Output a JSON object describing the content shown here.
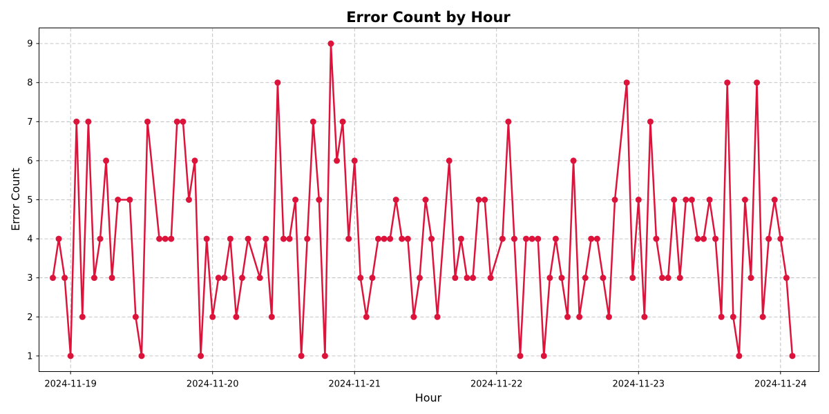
{
  "chart_data": {
    "type": "line",
    "title": "Error Count by Hour",
    "xlabel": "Hour",
    "ylabel": "Error Count",
    "xlim": [
      "2024-11-18 18:40",
      "2024-11-24 06:30"
    ],
    "ylim": [
      0.6,
      9.4
    ],
    "grid": true,
    "x_ticks": [
      {
        "value": "2024-11-19 00:00",
        "label": "2024-11-19"
      },
      {
        "value": "2024-11-20 00:00",
        "label": "2024-11-20"
      },
      {
        "value": "2024-11-21 00:00",
        "label": "2024-11-21"
      },
      {
        "value": "2024-11-22 00:00",
        "label": "2024-11-22"
      },
      {
        "value": "2024-11-23 00:00",
        "label": "2024-11-23"
      },
      {
        "value": "2024-11-24 00:00",
        "label": "2024-11-24"
      }
    ],
    "y_ticks": [
      1,
      2,
      3,
      4,
      5,
      6,
      7,
      8,
      9
    ],
    "series": [
      {
        "color": "#dc143c",
        "points": [
          [
            "2024-11-18 21:00",
            3
          ],
          [
            "2024-11-18 22:00",
            4
          ],
          [
            "2024-11-18 23:00",
            3
          ],
          [
            "2024-11-19 00:00",
            1
          ],
          [
            "2024-11-19 01:00",
            7
          ],
          [
            "2024-11-19 02:00",
            2
          ],
          [
            "2024-11-19 03:00",
            7
          ],
          [
            "2024-11-19 04:00",
            3
          ],
          [
            "2024-11-19 05:00",
            4
          ],
          [
            "2024-11-19 06:00",
            6
          ],
          [
            "2024-11-19 07:00",
            3
          ],
          [
            "2024-11-19 08:00",
            5
          ],
          [
            "2024-11-19 10:00",
            5
          ],
          [
            "2024-11-19 11:00",
            2
          ],
          [
            "2024-11-19 12:00",
            1
          ],
          [
            "2024-11-19 13:00",
            7
          ],
          [
            "2024-11-19 15:00",
            4
          ],
          [
            "2024-11-19 16:00",
            4
          ],
          [
            "2024-11-19 17:00",
            4
          ],
          [
            "2024-11-19 18:00",
            7
          ],
          [
            "2024-11-19 19:00",
            7
          ],
          [
            "2024-11-19 20:00",
            5
          ],
          [
            "2024-11-19 21:00",
            6
          ],
          [
            "2024-11-19 22:00",
            1
          ],
          [
            "2024-11-19 23:00",
            4
          ],
          [
            "2024-11-20 00:00",
            2
          ],
          [
            "2024-11-20 01:00",
            3
          ],
          [
            "2024-11-20 02:00",
            3
          ],
          [
            "2024-11-20 03:00",
            4
          ],
          [
            "2024-11-20 04:00",
            2
          ],
          [
            "2024-11-20 05:00",
            3
          ],
          [
            "2024-11-20 06:00",
            4
          ],
          [
            "2024-11-20 08:00",
            3
          ],
          [
            "2024-11-20 09:00",
            4
          ],
          [
            "2024-11-20 10:00",
            2
          ],
          [
            "2024-11-20 11:00",
            8
          ],
          [
            "2024-11-20 12:00",
            4
          ],
          [
            "2024-11-20 13:00",
            4
          ],
          [
            "2024-11-20 14:00",
            5
          ],
          [
            "2024-11-20 15:00",
            1
          ],
          [
            "2024-11-20 16:00",
            4
          ],
          [
            "2024-11-20 17:00",
            7
          ],
          [
            "2024-11-20 18:00",
            5
          ],
          [
            "2024-11-20 19:00",
            1
          ],
          [
            "2024-11-20 20:00",
            9
          ],
          [
            "2024-11-20 21:00",
            6
          ],
          [
            "2024-11-20 22:00",
            7
          ],
          [
            "2024-11-20 23:00",
            4
          ],
          [
            "2024-11-21 00:00",
            6
          ],
          [
            "2024-11-21 01:00",
            3
          ],
          [
            "2024-11-21 02:00",
            2
          ],
          [
            "2024-11-21 03:00",
            3
          ],
          [
            "2024-11-21 04:00",
            4
          ],
          [
            "2024-11-21 05:00",
            4
          ],
          [
            "2024-11-21 06:00",
            4
          ],
          [
            "2024-11-21 07:00",
            5
          ],
          [
            "2024-11-21 08:00",
            4
          ],
          [
            "2024-11-21 09:00",
            4
          ],
          [
            "2024-11-21 10:00",
            2
          ],
          [
            "2024-11-21 11:00",
            3
          ],
          [
            "2024-11-21 12:00",
            5
          ],
          [
            "2024-11-21 13:00",
            4
          ],
          [
            "2024-11-21 14:00",
            2
          ],
          [
            "2024-11-21 16:00",
            6
          ],
          [
            "2024-11-21 17:00",
            3
          ],
          [
            "2024-11-21 18:00",
            4
          ],
          [
            "2024-11-21 19:00",
            3
          ],
          [
            "2024-11-21 20:00",
            3
          ],
          [
            "2024-11-21 21:00",
            5
          ],
          [
            "2024-11-21 22:00",
            5
          ],
          [
            "2024-11-21 23:00",
            3
          ],
          [
            "2024-11-22 01:00",
            4
          ],
          [
            "2024-11-22 02:00",
            7
          ],
          [
            "2024-11-22 03:00",
            4
          ],
          [
            "2024-11-22 04:00",
            1
          ],
          [
            "2024-11-22 05:00",
            4
          ],
          [
            "2024-11-22 06:00",
            4
          ],
          [
            "2024-11-22 07:00",
            4
          ],
          [
            "2024-11-22 08:00",
            1
          ],
          [
            "2024-11-22 09:00",
            3
          ],
          [
            "2024-11-22 10:00",
            4
          ],
          [
            "2024-11-22 11:00",
            3
          ],
          [
            "2024-11-22 12:00",
            2
          ],
          [
            "2024-11-22 13:00",
            6
          ],
          [
            "2024-11-22 14:00",
            2
          ],
          [
            "2024-11-22 15:00",
            3
          ],
          [
            "2024-11-22 16:00",
            4
          ],
          [
            "2024-11-22 17:00",
            4
          ],
          [
            "2024-11-22 18:00",
            3
          ],
          [
            "2024-11-22 19:00",
            2
          ],
          [
            "2024-11-22 20:00",
            5
          ],
          [
            "2024-11-22 22:00",
            8
          ],
          [
            "2024-11-22 23:00",
            3
          ],
          [
            "2024-11-23 00:00",
            5
          ],
          [
            "2024-11-23 01:00",
            2
          ],
          [
            "2024-11-23 02:00",
            7
          ],
          [
            "2024-11-23 03:00",
            4
          ],
          [
            "2024-11-23 04:00",
            3
          ],
          [
            "2024-11-23 05:00",
            3
          ],
          [
            "2024-11-23 06:00",
            5
          ],
          [
            "2024-11-23 07:00",
            3
          ],
          [
            "2024-11-23 08:00",
            5
          ],
          [
            "2024-11-23 09:00",
            5
          ],
          [
            "2024-11-23 10:00",
            4
          ],
          [
            "2024-11-23 11:00",
            4
          ],
          [
            "2024-11-23 12:00",
            5
          ],
          [
            "2024-11-23 13:00",
            4
          ],
          [
            "2024-11-23 14:00",
            2
          ],
          [
            "2024-11-23 15:00",
            8
          ],
          [
            "2024-11-23 16:00",
            2
          ],
          [
            "2024-11-23 17:00",
            1
          ],
          [
            "2024-11-23 18:00",
            5
          ],
          [
            "2024-11-23 19:00",
            3
          ],
          [
            "2024-11-23 20:00",
            8
          ],
          [
            "2024-11-23 21:00",
            2
          ],
          [
            "2024-11-23 22:00",
            4
          ],
          [
            "2024-11-23 23:00",
            5
          ],
          [
            "2024-11-24 00:00",
            4
          ],
          [
            "2024-11-24 01:00",
            3
          ],
          [
            "2024-11-24 02:00",
            1
          ]
        ]
      }
    ]
  }
}
